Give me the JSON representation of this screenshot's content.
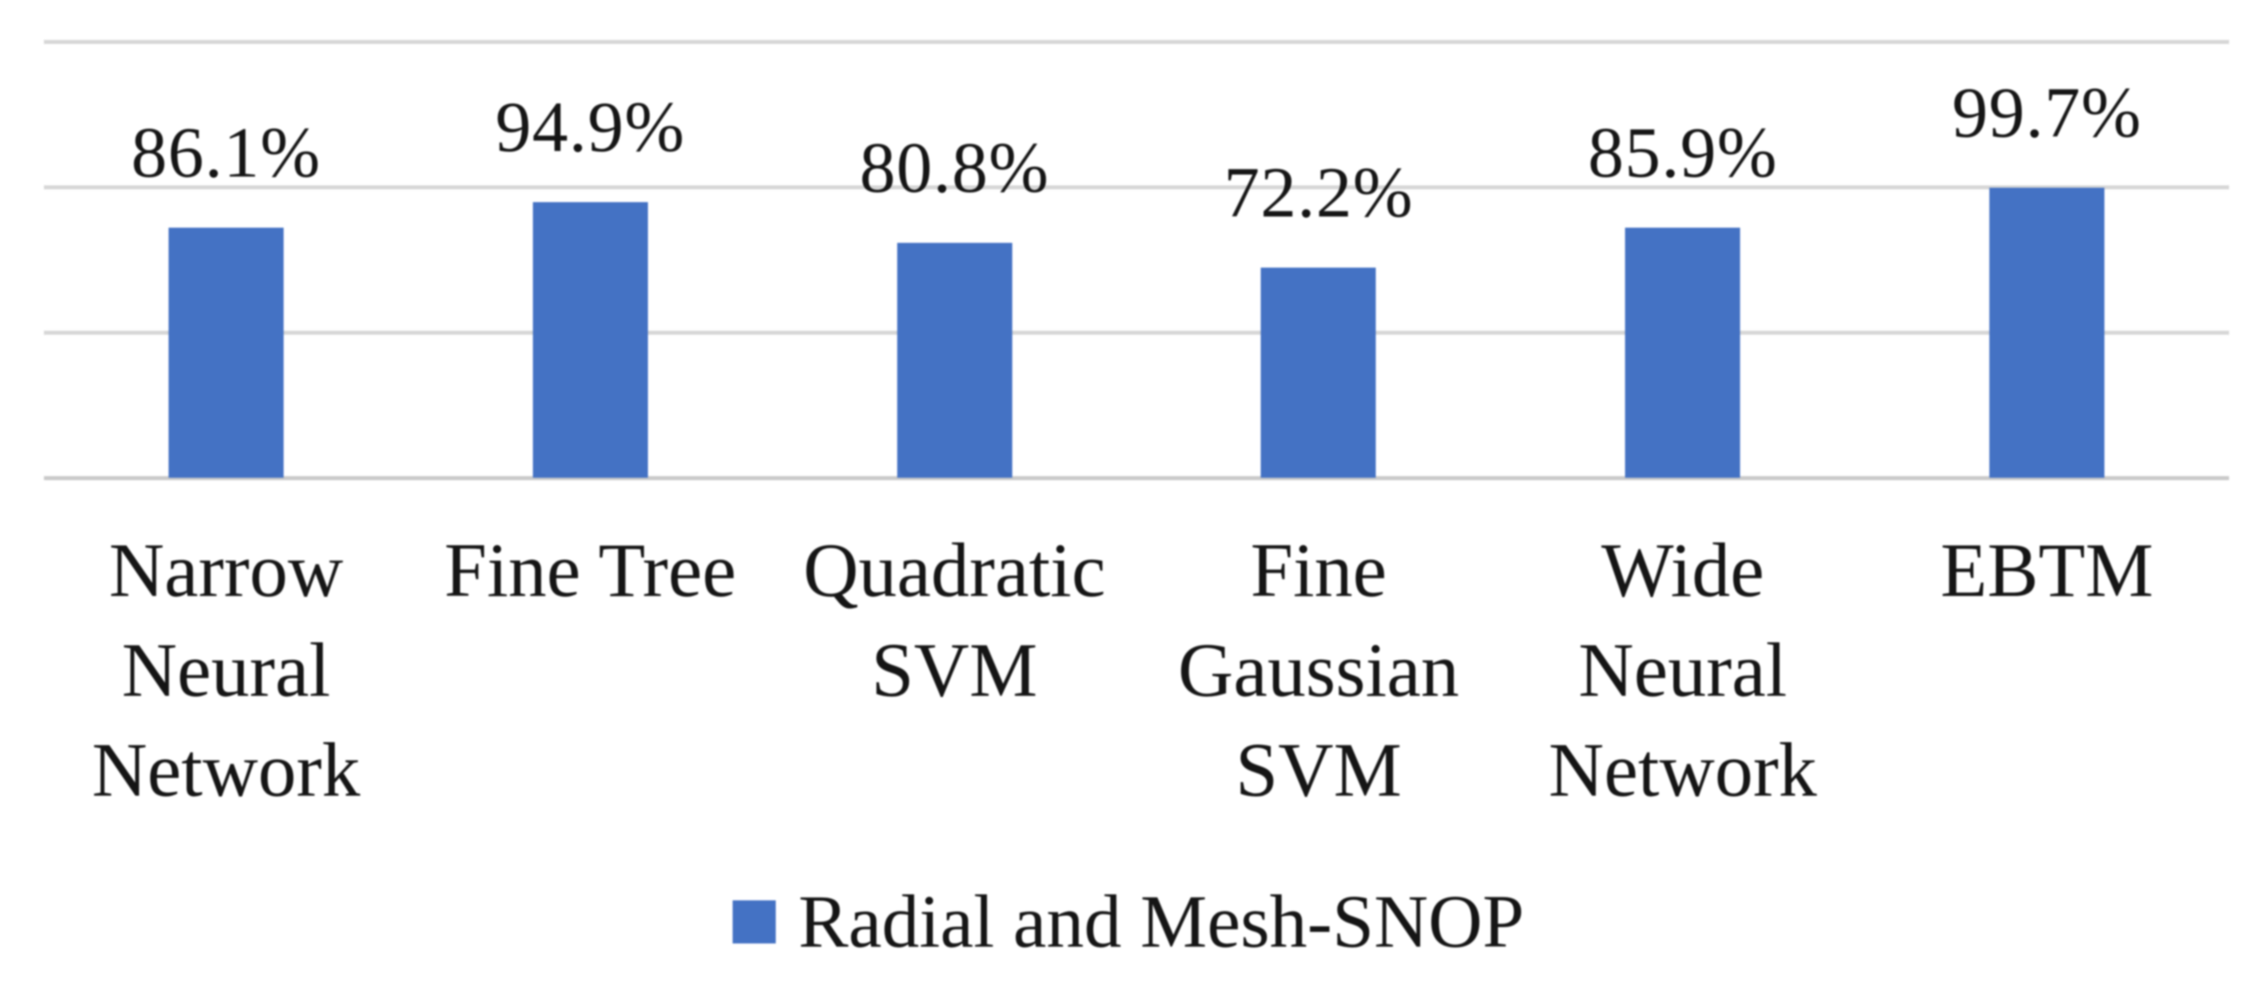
{
  "chart_data": {
    "type": "bar",
    "title": "",
    "categories": [
      "Narrow Neural Network",
      "Fine Tree",
      "Quadratic SVM",
      "Fine Gaussian SVM",
      "Wide Neural Network",
      "EBTM"
    ],
    "category_lines": [
      [
        "Narrow",
        "Neural",
        "Network"
      ],
      [
        "Fine Tree"
      ],
      [
        "Quadratic",
        "SVM"
      ],
      [
        "Fine",
        "Gaussian",
        "SVM"
      ],
      [
        "Wide",
        "Neural",
        "Network"
      ],
      [
        "EBTM"
      ]
    ],
    "series": [
      {
        "name": "Radial and Mesh-SNOP",
        "values": [
          86.1,
          94.9,
          80.8,
          72.2,
          85.9,
          99.7
        ]
      }
    ],
    "data_labels": [
      "86.1%",
      "94.9%",
      "80.8%",
      "72.2%",
      "85.9%",
      "99.7%"
    ],
    "ylim": [
      0,
      150
    ],
    "gridline_interval": 50,
    "grid": true,
    "y_axis_labels_visible": false,
    "legend_position": "bottom",
    "colors": {
      "bar": "#4472C4",
      "gridline": "#D6D6D6",
      "axis_line": "#C9C9C9",
      "text": "#151515",
      "background": "#FFFFFF"
    }
  },
  "legend": {
    "label": "Radial and Mesh-SNOP",
    "swatch_color": "#4472C4"
  }
}
